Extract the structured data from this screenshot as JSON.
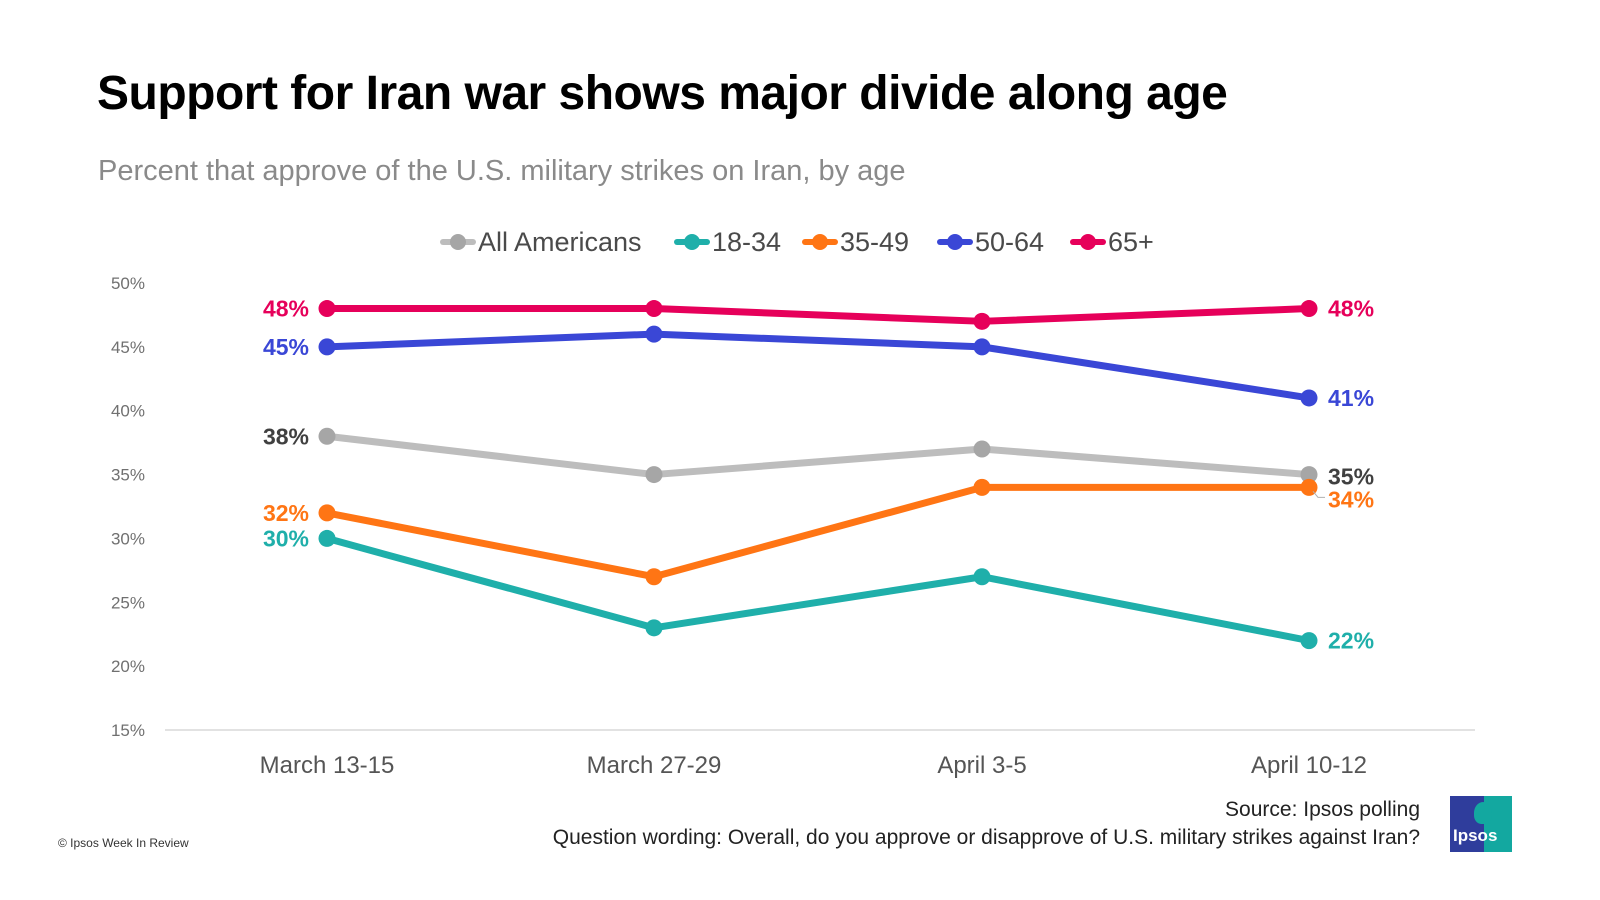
{
  "header": {
    "title": "Support for Iran war shows major divide along age",
    "subtitle": "Percent that approve of the U.S. military strikes on Iran, by age"
  },
  "footer": {
    "source": "Source: Ipsos polling",
    "question_wording": "Question wording: Overall, do you approve or disapprove of U.S. military strikes against Iran?",
    "copyright": "© Ipsos Week In Review",
    "logo_text": "Ipsos"
  },
  "chart_data": {
    "type": "line",
    "title": "Support for Iran war shows major divide along age",
    "subtitle": "Percent that approve of the U.S. military strikes on Iran, by age",
    "xlabel": "",
    "ylabel": "",
    "categories": [
      "March 13-15",
      "March 27-29",
      "April 3-5",
      "April 10-12"
    ],
    "ylim": [
      15,
      50
    ],
    "yticks": [
      15,
      20,
      25,
      30,
      35,
      40,
      45,
      50
    ],
    "ytick_labels": [
      "15%",
      "20%",
      "25%",
      "30%",
      "35%",
      "40%",
      "45%",
      "50%"
    ],
    "grid": false,
    "legend_position": "top-center",
    "series": [
      {
        "name": "All Americans",
        "color": "#bdbdbd",
        "marker_color": "#a6a6a6",
        "label_color": "#404040",
        "values": [
          38,
          35,
          37,
          35
        ],
        "start_label": "38%",
        "end_label": "35%"
      },
      {
        "name": "18-34",
        "color": "#1fafaa",
        "marker_color": "#1fafaa",
        "label_color": "#1fafaa",
        "values": [
          30,
          23,
          27,
          22
        ],
        "start_label": "30%",
        "end_label": "22%"
      },
      {
        "name": "35-49",
        "color": "#ff7514",
        "marker_color": "#ff7514",
        "label_color": "#ff7514",
        "values": [
          32,
          27,
          34,
          34
        ],
        "start_label": "32%",
        "end_label": "34%"
      },
      {
        "name": "50-64",
        "color": "#3a47d6",
        "marker_color": "#3a47d6",
        "label_color": "#3a47d6",
        "values": [
          45,
          46,
          45,
          41
        ],
        "start_label": "45%",
        "end_label": "41%"
      },
      {
        "name": "65+",
        "color": "#e6005a",
        "marker_color": "#e6005a",
        "label_color": "#e6005a",
        "values": [
          48,
          48,
          47,
          48
        ],
        "start_label": "48%",
        "end_label": "48%"
      }
    ]
  }
}
